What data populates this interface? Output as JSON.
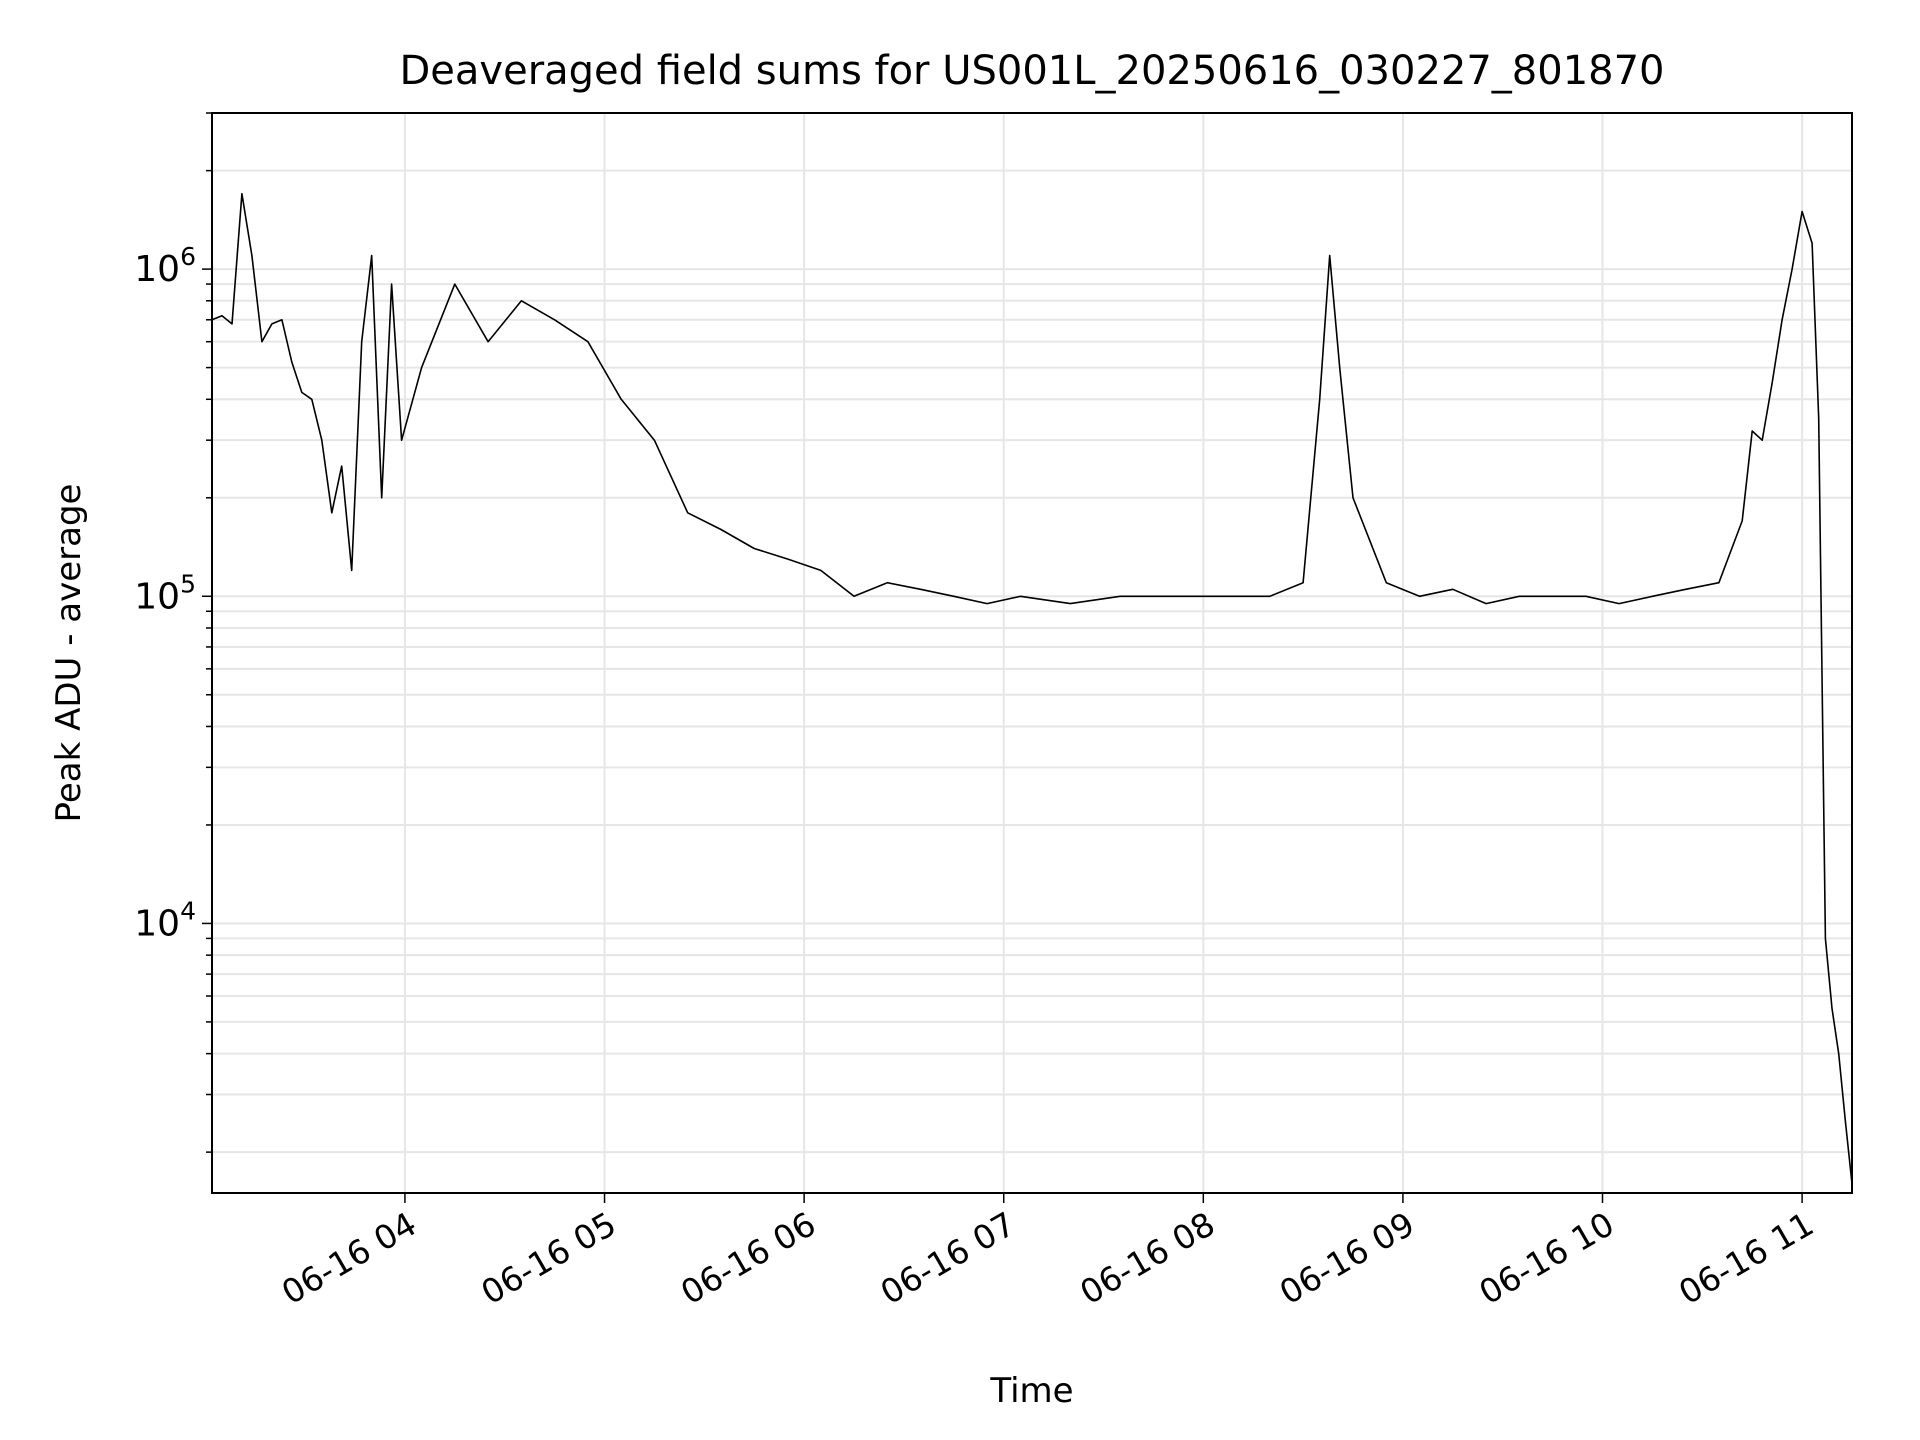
{
  "chart_data": {
    "type": "line",
    "title": "Deaveraged field sums for US001L_20250616_030227_801870",
    "xlabel": "Time",
    "ylabel": "Peak ADU - average",
    "x_ticks": [
      "06-16 04",
      "06-16 05",
      "06-16 06",
      "06-16 07",
      "06-16 08",
      "06-16 09",
      "06-16 10",
      "06-16 11"
    ],
    "x_tick_times": [
      "2025-06-16 04:00",
      "2025-06-16 05:00",
      "2025-06-16 06:00",
      "2025-06-16 07:00",
      "2025-06-16 08:00",
      "2025-06-16 09:00",
      "2025-06-16 10:00",
      "2025-06-16 11:00"
    ],
    "xlim": [
      "2025-06-16 03:02",
      "2025-06-16 11:15"
    ],
    "y_scale": "log",
    "y_ticks": [
      10000,
      100000,
      1000000
    ],
    "y_tick_labels": [
      {
        "base": "10",
        "exp": "4"
      },
      {
        "base": "10",
        "exp": "5"
      },
      {
        "base": "10",
        "exp": "6"
      }
    ],
    "ylim": [
      1500,
      3000000
    ],
    "grid": true,
    "line_color": "#000000",
    "grid_color": "#e6e6e6",
    "series": [
      {
        "x": [
          "2025-06-16 03:02",
          "2025-06-16 03:05",
          "2025-06-16 03:08",
          "2025-06-16 03:11",
          "2025-06-16 03:14",
          "2025-06-16 03:17",
          "2025-06-16 03:20",
          "2025-06-16 03:23",
          "2025-06-16 03:26",
          "2025-06-16 03:29",
          "2025-06-16 03:32",
          "2025-06-16 03:35",
          "2025-06-16 03:38",
          "2025-06-16 03:41",
          "2025-06-16 03:44",
          "2025-06-16 03:47",
          "2025-06-16 03:50",
          "2025-06-16 03:53",
          "2025-06-16 03:56",
          "2025-06-16 03:59",
          "2025-06-16 04:05",
          "2025-06-16 04:15",
          "2025-06-16 04:25",
          "2025-06-16 04:35",
          "2025-06-16 04:45",
          "2025-06-16 04:55",
          "2025-06-16 05:05",
          "2025-06-16 05:15",
          "2025-06-16 05:25",
          "2025-06-16 05:35",
          "2025-06-16 05:45",
          "2025-06-16 05:55",
          "2025-06-16 06:05",
          "2025-06-16 06:15",
          "2025-06-16 06:25",
          "2025-06-16 06:35",
          "2025-06-16 06:45",
          "2025-06-16 06:55",
          "2025-06-16 07:05",
          "2025-06-16 07:20",
          "2025-06-16 07:35",
          "2025-06-16 07:50",
          "2025-06-16 08:05",
          "2025-06-16 08:20",
          "2025-06-16 08:30",
          "2025-06-16 08:35",
          "2025-06-16 08:38",
          "2025-06-16 08:41",
          "2025-06-16 08:45",
          "2025-06-16 08:55",
          "2025-06-16 09:05",
          "2025-06-16 09:15",
          "2025-06-16 09:25",
          "2025-06-16 09:35",
          "2025-06-16 09:45",
          "2025-06-16 09:55",
          "2025-06-16 10:05",
          "2025-06-16 10:15",
          "2025-06-16 10:25",
          "2025-06-16 10:35",
          "2025-06-16 10:42",
          "2025-06-16 10:45",
          "2025-06-16 10:48",
          "2025-06-16 10:51",
          "2025-06-16 10:54",
          "2025-06-16 10:57",
          "2025-06-16 11:00",
          "2025-06-16 11:03",
          "2025-06-16 11:05",
          "2025-06-16 11:07",
          "2025-06-16 11:09",
          "2025-06-16 11:11",
          "2025-06-16 11:13",
          "2025-06-16 11:15"
        ],
        "y": [
          700000,
          720000,
          680000,
          1700000,
          1100000,
          600000,
          680000,
          700000,
          520000,
          420000,
          400000,
          300000,
          180000,
          250000,
          120000,
          600000,
          1100000,
          200000,
          900000,
          300000,
          500000,
          900000,
          600000,
          800000,
          700000,
          600000,
          400000,
          300000,
          180000,
          160000,
          140000,
          130000,
          120000,
          100000,
          110000,
          105000,
          100000,
          95000,
          100000,
          95000,
          100000,
          100000,
          100000,
          100000,
          110000,
          400000,
          1100000,
          500000,
          200000,
          110000,
          100000,
          105000,
          95000,
          100000,
          100000,
          100000,
          95000,
          100000,
          105000,
          110000,
          170000,
          320000,
          300000,
          450000,
          700000,
          1000000,
          1500000,
          1200000,
          350000,
          9000,
          5500,
          4000,
          2500,
          1600
        ]
      }
    ]
  }
}
